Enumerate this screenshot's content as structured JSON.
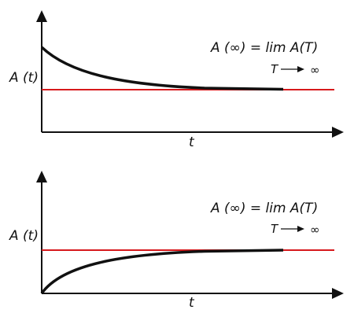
{
  "panels": [
    {
      "y_label": "A (t)",
      "x_label": "t",
      "formula": "A (∞) = lim A(T)",
      "limit_from": "T",
      "limit_to": "∞"
    },
    {
      "y_label": "A (t)",
      "x_label": "t",
      "formula": "A (∞) = lim A(T)",
      "limit_from": "T",
      "limit_to": "∞"
    }
  ]
}
